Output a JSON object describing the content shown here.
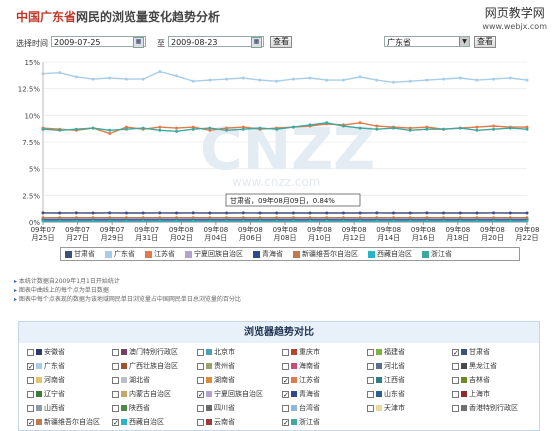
{
  "title": {
    "highlight": "中国广东省",
    "rest": "网民的浏览量变化趋势分析"
  },
  "watermark": {
    "line1": "网页教学网",
    "line2": "www.webjx.com"
  },
  "filters": {
    "label": "选择时间",
    "from": "2009-07-25",
    "to_label": "至",
    "to": "2009-08-23",
    "view_btn": "查看",
    "region": "广东省",
    "view_btn2": "查看"
  },
  "chart_data": {
    "type": "line",
    "ylim": [
      0,
      15
    ],
    "yticks": [
      "15%",
      "12.5%",
      "10%",
      "7.5%",
      "5%",
      "2.5%",
      "0%"
    ],
    "xticks": [
      {
        "d": "09年07",
        "m": "月25日"
      },
      {
        "d": "09年07",
        "m": "月27日"
      },
      {
        "d": "09年07",
        "m": "月29日"
      },
      {
        "d": "09年07",
        "m": "月31日"
      },
      {
        "d": "09年08",
        "m": "月02日"
      },
      {
        "d": "09年08",
        "m": "月04日"
      },
      {
        "d": "09年08",
        "m": "月06日"
      },
      {
        "d": "09年08",
        "m": "月08日"
      },
      {
        "d": "09年08",
        "m": "月10日"
      },
      {
        "d": "09年08",
        "m": "月12日"
      },
      {
        "d": "09年08",
        "m": "月14日"
      },
      {
        "d": "09年08",
        "m": "月16日"
      },
      {
        "d": "09年08",
        "m": "月18日"
      },
      {
        "d": "09年08",
        "m": "月20日"
      },
      {
        "d": "09年08",
        "m": "月22日"
      }
    ],
    "tooltip": "甘肃省，09年08月09日，0.84%",
    "watermark_text": "CNZZ",
    "watermark_url": "www.cnzz.com",
    "series": [
      {
        "name": "广东省",
        "color": "#a9cde8",
        "values": [
          13.9,
          14.0,
          13.6,
          13.4,
          13.5,
          13.4,
          13.4,
          14.1,
          13.7,
          13.2,
          13.3,
          13.4,
          13.5,
          13.3,
          13.2,
          13.4,
          13.5,
          13.3,
          13.3,
          13.6,
          13.3,
          13.1,
          13.2,
          13.3,
          13.4,
          13.5,
          13.3,
          13.4,
          13.5,
          13.3
        ]
      },
      {
        "name": "江苏省",
        "color": "#e07a4a",
        "values": [
          8.8,
          8.7,
          8.6,
          8.8,
          8.3,
          8.9,
          8.7,
          8.9,
          8.8,
          8.9,
          8.6,
          8.8,
          8.9,
          8.7,
          8.8,
          8.9,
          9.0,
          9.2,
          9.1,
          9.3,
          9.0,
          8.9,
          8.8,
          8.9,
          8.7,
          8.8,
          8.9,
          9.0,
          8.9,
          8.9
        ]
      },
      {
        "name": "浙江省",
        "color": "#3fa89c",
        "values": [
          8.7,
          8.6,
          8.7,
          8.8,
          8.6,
          8.7,
          8.8,
          8.6,
          8.5,
          8.7,
          8.8,
          8.6,
          8.7,
          8.8,
          8.7,
          8.9,
          9.1,
          9.3,
          9.0,
          8.8,
          8.7,
          8.8,
          8.6,
          8.7,
          8.7,
          8.8,
          8.6,
          8.7,
          8.8,
          8.7
        ]
      },
      {
        "name": "甘肃省",
        "color": "#3d4f7d",
        "values": [
          0.85,
          0.84,
          0.85,
          0.84,
          0.85,
          0.84,
          0.84,
          0.85,
          0.84,
          0.85,
          0.84,
          0.84,
          0.85,
          0.84,
          0.84,
          0.84,
          0.84,
          0.84,
          0.84,
          0.84,
          0.85,
          0.84,
          0.84,
          0.85,
          0.84,
          0.84,
          0.84,
          0.85,
          0.84,
          0.84
        ]
      },
      {
        "name": "宁夏回族自治区",
        "color": "#b3a4cf",
        "values": [
          0.3,
          0.3,
          0.3,
          0.3,
          0.3,
          0.3,
          0.3,
          0.3,
          0.3,
          0.3,
          0.3,
          0.3,
          0.3,
          0.3,
          0.3,
          0.3,
          0.3,
          0.3,
          0.3,
          0.3,
          0.3,
          0.3,
          0.3,
          0.3,
          0.3,
          0.3,
          0.3,
          0.3,
          0.3,
          0.3
        ]
      },
      {
        "name": "青海省",
        "color": "#2d4a8c",
        "values": [
          0.2,
          0.2,
          0.2,
          0.2,
          0.2,
          0.2,
          0.2,
          0.2,
          0.2,
          0.2,
          0.2,
          0.2,
          0.2,
          0.2,
          0.2,
          0.2,
          0.2,
          0.2,
          0.2,
          0.2,
          0.2,
          0.2,
          0.2,
          0.2,
          0.2,
          0.2,
          0.2,
          0.2,
          0.2,
          0.2
        ]
      },
      {
        "name": "新疆维吾尔自治区",
        "color": "#c27a4c",
        "values": [
          0.4,
          0.4,
          0.4,
          0.4,
          0.4,
          0.4,
          0.4,
          0.4,
          0.4,
          0.4,
          0.4,
          0.4,
          0.4,
          0.4,
          0.4,
          0.4,
          0.4,
          0.4,
          0.4,
          0.4,
          0.4,
          0.4,
          0.4,
          0.4,
          0.4,
          0.4,
          0.4,
          0.4,
          0.4,
          0.4
        ]
      },
      {
        "name": "西藏自治区",
        "color": "#29b3c5",
        "values": [
          0.1,
          0.1,
          0.1,
          0.1,
          0.1,
          0.1,
          0.1,
          0.1,
          0.1,
          0.1,
          0.1,
          0.1,
          0.1,
          0.1,
          0.1,
          0.1,
          0.1,
          0.1,
          0.1,
          0.1,
          0.1,
          0.1,
          0.1,
          0.1,
          0.1,
          0.1,
          0.1,
          0.1,
          0.1,
          0.1
        ]
      }
    ],
    "legend_order": [
      "甘肃省",
      "广东省",
      "江苏省",
      "宁夏回族自治区",
      "青海省",
      "新疆维吾尔自治区",
      "西藏自治区",
      "浙江省"
    ]
  },
  "notes": [
    "本统计数据自2009年1月1日开始统计",
    "图表中曲线上的每个点为单日数据",
    "图表中每个点表现的数据为该地域网民单日浏览量占中国网民单日总浏览量的百分比"
  ],
  "compare": {
    "title": "浏览器趋势对比",
    "provinces": [
      {
        "name": "安徽省",
        "color": "#2a3b6a",
        "checked": false
      },
      {
        "name": "澳门特别行政区",
        "color": "#7a3b6a",
        "checked": false
      },
      {
        "name": "北京市",
        "color": "#49a0b8",
        "checked": false
      },
      {
        "name": "重庆市",
        "color": "#b5452e",
        "checked": false
      },
      {
        "name": "福建省",
        "color": "#7cb342",
        "checked": false
      },
      {
        "name": "甘肃省",
        "color": "#3d4f7d",
        "checked": true
      },
      {
        "name": "广东省",
        "color": "#a9cde8",
        "checked": true
      },
      {
        "name": "广西壮族自治区",
        "color": "#a0522d",
        "checked": false
      },
      {
        "name": "贵州省",
        "color": "#9aa36b",
        "checked": false
      },
      {
        "name": "海南省",
        "color": "#c94d7a",
        "checked": false
      },
      {
        "name": "河北省",
        "color": "#5a6e8c",
        "checked": false
      },
      {
        "name": "黑龙江省",
        "color": "#4a4a4a",
        "checked": false
      },
      {
        "name": "河南省",
        "color": "#e3c36b",
        "checked": false
      },
      {
        "name": "湖北省",
        "color": "#b8bfc9",
        "checked": false
      },
      {
        "name": "湖南省",
        "color": "#d98a3a",
        "checked": false
      },
      {
        "name": "江苏省",
        "color": "#e07a4a",
        "checked": true
      },
      {
        "name": "江西省",
        "color": "#2e7d8c",
        "checked": false
      },
      {
        "name": "吉林省",
        "color": "#6b8e23",
        "checked": false
      },
      {
        "name": "辽宁省",
        "color": "#3a7a3a",
        "checked": false
      },
      {
        "name": "内蒙古自治区",
        "color": "#c7a86b",
        "checked": false
      },
      {
        "name": "宁夏回族自治区",
        "color": "#b3a4cf",
        "checked": true
      },
      {
        "name": "青海省",
        "color": "#2d4a8c",
        "checked": true
      },
      {
        "name": "山东省",
        "color": "#2b5f8c",
        "checked": false
      },
      {
        "name": "上海市",
        "color": "#8c2b2b",
        "checked": false
      },
      {
        "name": "山西省",
        "color": "#8a9bb0",
        "checked": false
      },
      {
        "name": "陕西省",
        "color": "#4c8a4c",
        "checked": false
      },
      {
        "name": "四川省",
        "color": "#6a6a6a",
        "checked": false
      },
      {
        "name": "台湾省",
        "color": "#8fb8d6",
        "checked": false
      },
      {
        "name": "天津市",
        "color": "#e8d9a0",
        "checked": false
      },
      {
        "name": "香港特别行政区",
        "color": "#707070",
        "checked": false
      },
      {
        "name": "新疆维吾尔自治区",
        "color": "#c27a4c",
        "checked": true
      },
      {
        "name": "西藏自治区",
        "color": "#29b3c5",
        "checked": true
      },
      {
        "name": "云南省",
        "color": "#a03a3a",
        "checked": false
      },
      {
        "name": "浙江省",
        "color": "#3fa89c",
        "checked": true
      }
    ]
  }
}
